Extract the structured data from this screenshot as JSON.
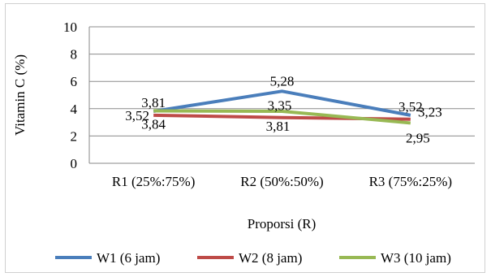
{
  "chart_data": {
    "type": "line",
    "categories": [
      "R1 (25%:75%)",
      "R2 (50%:50%)",
      "R3 (75%:25%)"
    ],
    "series": [
      {
        "name": "W1 (6 jam)",
        "values": [
          3.81,
          5.28,
          3.52
        ],
        "labels": [
          "3,81",
          "5,28",
          "3,52"
        ],
        "color": "#4a7ebb"
      },
      {
        "name": "W2 (8 jam)",
        "values": [
          3.52,
          3.35,
          3.23
        ],
        "labels": [
          "3,52",
          "3,35",
          "3,23"
        ],
        "color": "#be4b48"
      },
      {
        "name": "W3 (10 jam)",
        "values": [
          3.84,
          3.81,
          2.95
        ],
        "labels": [
          "3,84",
          "3,81",
          "2,95"
        ],
        "color": "#98b954"
      }
    ],
    "title": "",
    "xlabel": "Proporsi (R)",
    "ylabel": "Vitamin C (%)",
    "ylim": [
      0,
      10
    ],
    "yticks": [
      "0",
      "2",
      "4",
      "6",
      "8",
      "10"
    ],
    "grid": true,
    "legend_position": "bottom"
  }
}
